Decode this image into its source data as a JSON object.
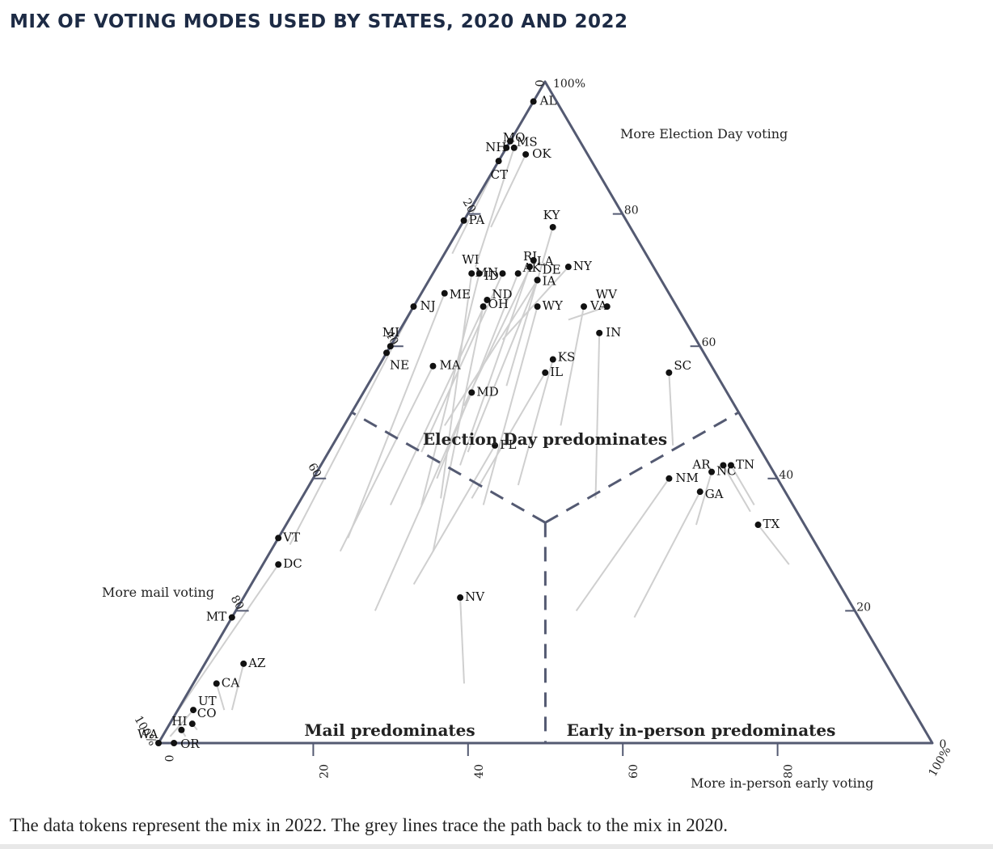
{
  "chart_data": {
    "type": "ternary-scatter",
    "title": "MIX OF VOTING MODES USED BY STATES, 2020 AND 2022",
    "caption": "The data tokens represent the mix in 2022. The grey lines trace the path back to the mix in 2020.",
    "axes": {
      "mail": {
        "label": "More mail voting",
        "ticks": [
          "0",
          "20",
          "40",
          "60",
          "80",
          "100%"
        ]
      },
      "election_day": {
        "label": "More Election Day voting",
        "ticks": [
          "0",
          "20",
          "40",
          "60",
          "80",
          "100%"
        ]
      },
      "early": {
        "label": "More in-person early voting",
        "ticks": [
          "0",
          "20",
          "40",
          "60",
          "80",
          "100%"
        ]
      }
    },
    "regions": [
      {
        "id": "election_day",
        "label": "Election Day predominates"
      },
      {
        "id": "mail",
        "label": "Mail predominates"
      },
      {
        "id": "early",
        "label": "Early in-person predominates"
      }
    ],
    "units": "percent of ballots (early, mail, election_day)",
    "states": [
      {
        "code": "AL",
        "y2022": [
          0,
          3,
          97
        ],
        "y2020": [
          0,
          29,
          71
        ]
      },
      {
        "code": "MO",
        "y2022": [
          1,
          9,
          90
        ],
        "y2020": [
          5,
          23,
          72
        ]
      },
      {
        "code": "NH",
        "y2022": [
          0,
          10,
          90
        ],
        "y2020": [
          0,
          31,
          69
        ]
      },
      {
        "code": "MS",
        "y2022": [
          0,
          9,
          91
        ],
        "y2020": [
          0,
          30,
          70
        ]
      },
      {
        "code": "CT",
        "y2022": [
          0,
          12,
          88
        ],
        "y2020": [
          1,
          25,
          74
        ]
      },
      {
        "code": "OK",
        "y2022": [
          3,
          8,
          89
        ],
        "y2020": [
          4,
          18,
          78
        ]
      },
      {
        "code": "KY",
        "y2022": [
          12,
          10,
          78
        ],
        "y2020": [
          18,
          28,
          54
        ]
      },
      {
        "code": "PA",
        "y2022": [
          0,
          21,
          79
        ],
        "y2020": [
          0,
          46,
          54
        ]
      },
      {
        "code": "RI",
        "y2022": [
          12,
          16,
          72
        ],
        "y2020": [
          18,
          40,
          42
        ]
      },
      {
        "code": "MN",
        "y2022": [
          9,
          20,
          71
        ],
        "y2020": [
          12,
          44,
          44
        ]
      },
      {
        "code": "NY",
        "y2022": [
          17,
          11,
          72
        ],
        "y2020": [
          14,
          25,
          61
        ]
      },
      {
        "code": "WV",
        "y2022": [
          25,
          9,
          66
        ],
        "y2020": [
          21,
          15,
          64
        ]
      },
      {
        "code": "DE",
        "y2022": [
          14,
          16,
          70
        ],
        "y2020": [
          13,
          39,
          48
        ]
      },
      {
        "code": "LA",
        "y2022": [
          12,
          15,
          73
        ],
        "y2020": [
          14,
          35,
          51
        ]
      },
      {
        "code": "NJ",
        "y2022": [
          0,
          34,
          66
        ],
        "y2020": [
          2,
          68,
          30
        ]
      },
      {
        "code": "WI",
        "y2022": [
          5,
          24,
          71
        ],
        "y2020": [
          18,
          45,
          37
        ]
      },
      {
        "code": "ID",
        "y2022": [
          6,
          23,
          71
        ],
        "y2020": [
          16,
          48,
          36
        ]
      },
      {
        "code": "AK",
        "y2022": [
          11,
          18,
          71
        ],
        "y2020": [
          16,
          44,
          40
        ]
      },
      {
        "code": "IA",
        "y2022": [
          14,
          16,
          70
        ],
        "y2020": [
          18,
          38,
          44
        ]
      },
      {
        "code": "VA",
        "y2022": [
          22,
          12,
          66
        ],
        "y2020": [
          28,
          24,
          48
        ]
      },
      {
        "code": "ME",
        "y2022": [
          3,
          29,
          68
        ],
        "y2020": [
          9,
          60,
          31
        ]
      },
      {
        "code": "ND",
        "y2022": [
          9,
          24,
          67
        ],
        "y2020": [
          12,
          52,
          36
        ]
      },
      {
        "code": "OH",
        "y2022": [
          9,
          25,
          66
        ],
        "y2020": [
          21,
          50,
          29
        ]
      },
      {
        "code": "WY",
        "y2022": [
          16,
          18,
          66
        ],
        "y2020": [
          24,
          40,
          36
        ]
      },
      {
        "code": "IN",
        "y2022": [
          26,
          12,
          62
        ],
        "y2020": [
          38,
          25,
          37
        ]
      },
      {
        "code": "MI",
        "y2022": [
          0,
          40,
          60
        ],
        "y2020": [
          0,
          70,
          30
        ]
      },
      {
        "code": "NE",
        "y2022": [
          0,
          41,
          59
        ],
        "y2020": [
          0,
          79,
          21
        ]
      },
      {
        "code": "MA",
        "y2022": [
          7,
          36,
          57
        ],
        "y2020": [
          9,
          62,
          29
        ]
      },
      {
        "code": "KS",
        "y2022": [
          22,
          20,
          58
        ],
        "y2020": [
          27,
          34,
          39
        ]
      },
      {
        "code": "IL",
        "y2022": [
          22,
          22,
          56
        ],
        "y2020": [
          22,
          41,
          37
        ]
      },
      {
        "code": "SC",
        "y2022": [
          38,
          6,
          56
        ],
        "y2020": [
          44,
          11,
          45
        ]
      },
      {
        "code": "MD",
        "y2022": [
          14,
          33,
          53
        ],
        "y2020": [
          18,
          62,
          20
        ]
      },
      {
        "code": "FL",
        "y2022": [
          21,
          34,
          45
        ],
        "y2020": [
          21,
          55,
          24
        ]
      },
      {
        "code": "AR",
        "y2022": [
          52,
          6,
          42
        ],
        "y2020": [
          59,
          6,
          35
        ]
      },
      {
        "code": "TN",
        "y2022": [
          53,
          5,
          42
        ],
        "y2020": [
          59,
          5,
          36
        ]
      },
      {
        "code": "NM",
        "y2022": [
          46,
          14,
          40
        ],
        "y2020": [
          44,
          36,
          20
        ]
      },
      {
        "code": "NC",
        "y2022": [
          51,
          8,
          41
        ],
        "y2020": [
          53,
          14,
          33
        ]
      },
      {
        "code": "GA",
        "y2022": [
          51,
          11,
          38
        ],
        "y2020": [
          52,
          29,
          19
        ]
      },
      {
        "code": "TX",
        "y2022": [
          61,
          6,
          33
        ],
        "y2020": [
          68,
          5,
          27
        ]
      },
      {
        "code": "VT",
        "y2022": [
          0,
          69,
          31
        ],
        "y2020": [
          0,
          78,
          22
        ]
      },
      {
        "code": "DC",
        "y2022": [
          2,
          71,
          27
        ],
        "y2020": [
          0,
          96,
          4
        ]
      },
      {
        "code": "NV",
        "y2022": [
          28,
          50,
          22
        ],
        "y2020": [
          35,
          56,
          9
        ]
      },
      {
        "code": "MT",
        "y2022": [
          0,
          81,
          19
        ],
        "y2020": [
          0,
          86,
          14
        ]
      },
      {
        "code": "AZ",
        "y2022": [
          5,
          83,
          12
        ],
        "y2020": [
          7,
          88,
          5
        ]
      },
      {
        "code": "CA",
        "y2022": [
          3,
          88,
          9
        ],
        "y2020": [
          6,
          89,
          5
        ]
      },
      {
        "code": "UT",
        "y2022": [
          2,
          93,
          5
        ],
        "y2020": [
          1,
          98,
          1
        ]
      },
      {
        "code": "CO",
        "y2022": [
          3,
          97,
          3
        ],
        "y2020": [
          4,
          94,
          2
        ]
      },
      {
        "code": "HI",
        "y2022": [
          2,
          97,
          2
        ],
        "y2020": [
          3,
          96,
          1
        ]
      },
      {
        "code": "WA",
        "y2022": [
          0,
          100,
          0
        ],
        "y2020": [
          0,
          100,
          0
        ]
      },
      {
        "code": "OR",
        "y2022": [
          2,
          98,
          0
        ],
        "y2020": [
          2,
          98,
          0
        ]
      }
    ]
  }
}
